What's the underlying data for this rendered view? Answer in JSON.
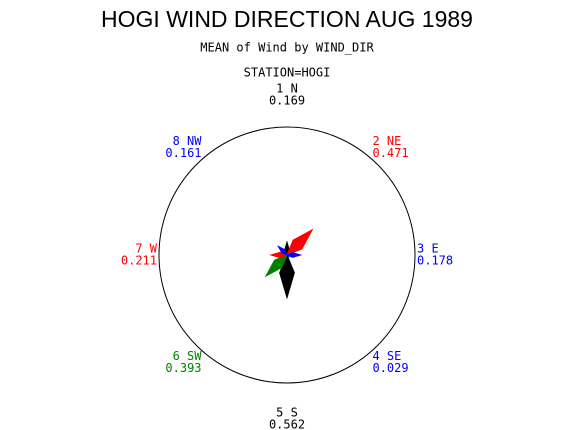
{
  "chart_data": {
    "type": "star",
    "title": "HOGI WIND DIRECTION AUG 1989",
    "subtitle": "MEAN of Wind by WIND_DIR",
    "station": "STATION=HOGI",
    "categories": [
      "1 N",
      "2 NE",
      "3 E",
      "4 SE",
      "5 S",
      "6 SW",
      "7 W",
      "8 NW"
    ],
    "values": [
      0.169,
      0.471,
      0.178,
      0.029,
      0.562,
      0.393,
      0.211,
      0.161
    ],
    "colors": [
      "#000000",
      "#ff0000",
      "#0000ff",
      "#0000ff",
      "#000000",
      "#008000",
      "#ff0000",
      "#0000ff"
    ]
  }
}
